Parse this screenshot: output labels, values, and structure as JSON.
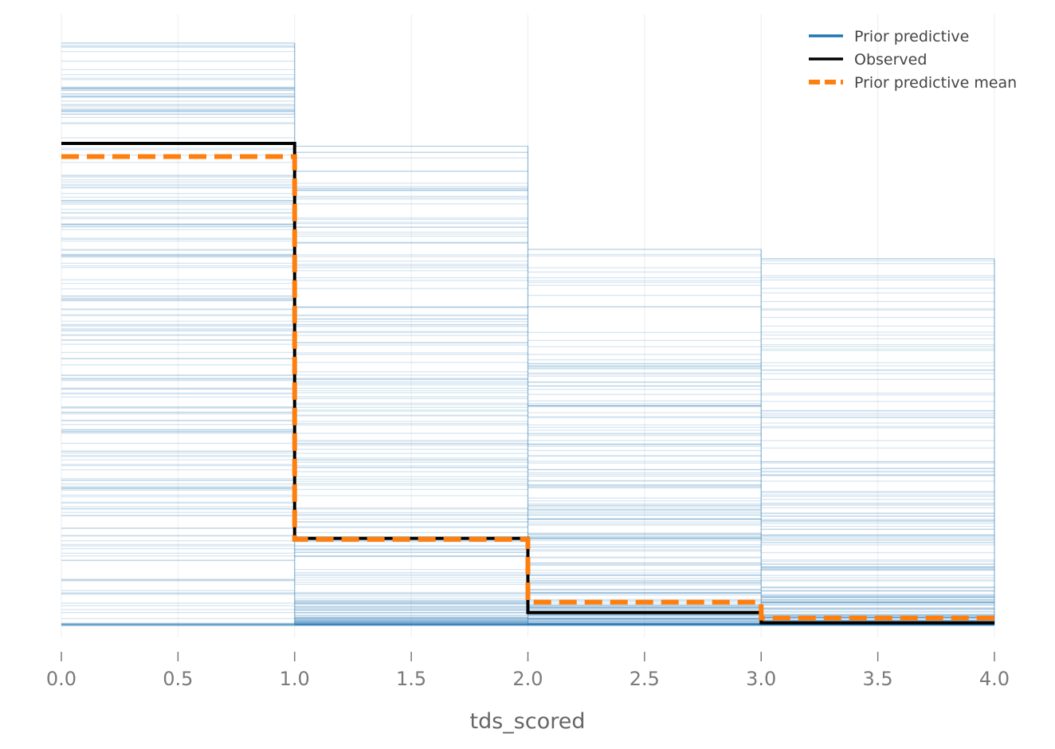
{
  "chart_data": {
    "type": "line",
    "xlabel": "tds_scored",
    "ylabel": "",
    "xlim": [
      0,
      4
    ],
    "ylim": [
      0,
      0.62
    ],
    "x_ticks": [
      "0.0",
      "0.5",
      "1.0",
      "1.5",
      "2.0",
      "2.5",
      "3.0",
      "3.5",
      "4.0"
    ],
    "bin_edges": [
      0,
      1,
      2,
      3,
      4
    ],
    "grid": true,
    "legend_position": "top-right",
    "series": [
      {
        "name": "Prior predictive",
        "color": "#1f77b4",
        "style": "solid",
        "sample_bounds": [
          [
            0.0,
            0.62
          ],
          [
            0.0,
            0.51
          ],
          [
            0.0,
            0.4
          ],
          [
            0.0,
            0.39
          ]
        ],
        "sample_count": 200
      },
      {
        "name": "Observed",
        "color": "#000000",
        "style": "solid",
        "values": [
          0.513,
          0.092,
          0.013,
          0.002
        ]
      },
      {
        "name": "Prior predictive mean",
        "color": "#ff7f0e",
        "style": "dashed",
        "values": [
          0.499,
          0.091,
          0.024,
          0.007
        ]
      }
    ]
  }
}
